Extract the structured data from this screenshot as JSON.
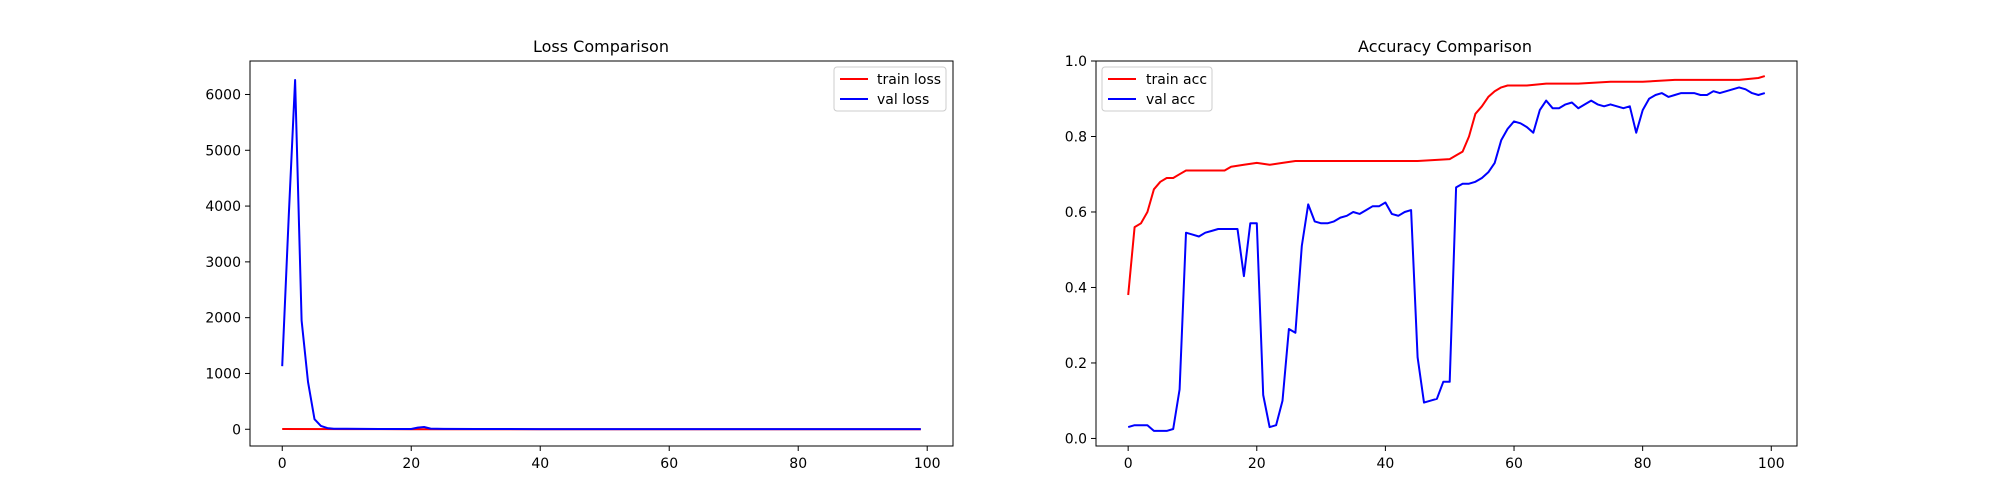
{
  "chart_data": [
    {
      "type": "line",
      "title": "Loss Comparison",
      "xlabel": "",
      "ylabel": "",
      "xlim": [
        -5,
        104
      ],
      "ylim": [
        -300,
        6600
      ],
      "xticks": [
        0,
        20,
        40,
        60,
        80,
        100
      ],
      "yticks": [
        0,
        1000,
        2000,
        3000,
        4000,
        5000,
        6000
      ],
      "grid": false,
      "legend": "top-right",
      "series": [
        {
          "name": "train loss",
          "color": "#ff0000",
          "x": [
            0,
            10,
            20,
            30,
            40,
            50,
            60,
            70,
            80,
            90,
            99
          ],
          "values": [
            5,
            2,
            1,
            1,
            1,
            1,
            1,
            1,
            1,
            1,
            1
          ]
        },
        {
          "name": "val loss",
          "color": "#0000ff",
          "x": [
            0,
            1,
            2,
            3,
            4,
            5,
            6,
            7,
            8,
            10,
            15,
            20,
            21,
            22,
            23,
            25,
            30,
            40,
            50,
            60,
            70,
            80,
            90,
            99
          ],
          "values": [
            1130,
            3800,
            6260,
            1950,
            850,
            180,
            60,
            20,
            10,
            8,
            5,
            5,
            30,
            40,
            12,
            6,
            4,
            3,
            3,
            3,
            3,
            3,
            3,
            3
          ]
        }
      ]
    },
    {
      "type": "line",
      "title": "Accuracy Comparison",
      "xlabel": "",
      "ylabel": "",
      "xlim": [
        -5,
        104
      ],
      "ylim": [
        -0.02,
        1.0
      ],
      "xticks": [
        0,
        20,
        40,
        60,
        80,
        100
      ],
      "yticks": [
        0.0,
        0.2,
        0.4,
        0.6,
        0.8,
        1.0
      ],
      "grid": false,
      "legend": "top-left",
      "series": [
        {
          "name": "train acc",
          "color": "#ff0000",
          "x": [
            0,
            1,
            2,
            3,
            4,
            5,
            6,
            7,
            8,
            9,
            10,
            12,
            14,
            15,
            16,
            18,
            20,
            22,
            24,
            26,
            30,
            35,
            40,
            45,
            50,
            51,
            52,
            53,
            54,
            55,
            56,
            57,
            58,
            59,
            60,
            62,
            65,
            70,
            75,
            80,
            85,
            90,
            95,
            98,
            99
          ],
          "values": [
            0.38,
            0.56,
            0.57,
            0.6,
            0.66,
            0.68,
            0.69,
            0.69,
            0.7,
            0.71,
            0.71,
            0.71,
            0.71,
            0.71,
            0.72,
            0.725,
            0.73,
            0.725,
            0.73,
            0.735,
            0.735,
            0.735,
            0.735,
            0.735,
            0.74,
            0.75,
            0.76,
            0.8,
            0.86,
            0.88,
            0.905,
            0.92,
            0.93,
            0.935,
            0.935,
            0.935,
            0.94,
            0.94,
            0.945,
            0.945,
            0.95,
            0.95,
            0.95,
            0.955,
            0.96
          ]
        },
        {
          "name": "val acc",
          "color": "#0000ff",
          "x": [
            0,
            1,
            2,
            3,
            4,
            5,
            6,
            7,
            8,
            9,
            10,
            11,
            12,
            13,
            14,
            15,
            16,
            17,
            18,
            19,
            20,
            21,
            22,
            23,
            24,
            25,
            26,
            27,
            28,
            29,
            30,
            31,
            32,
            33,
            34,
            35,
            36,
            37,
            38,
            39,
            40,
            41,
            42,
            43,
            44,
            45,
            46,
            47,
            48,
            49,
            50,
            51,
            52,
            53,
            54,
            55,
            56,
            57,
            58,
            59,
            60,
            61,
            62,
            63,
            64,
            65,
            66,
            67,
            68,
            69,
            70,
            71,
            72,
            73,
            74,
            75,
            76,
            77,
            78,
            79,
            80,
            81,
            82,
            83,
            84,
            85,
            86,
            87,
            88,
            89,
            90,
            91,
            92,
            93,
            94,
            95,
            96,
            97,
            98,
            99
          ],
          "values": [
            0.03,
            0.035,
            0.035,
            0.035,
            0.02,
            0.02,
            0.02,
            0.025,
            0.13,
            0.545,
            0.54,
            0.535,
            0.545,
            0.55,
            0.555,
            0.555,
            0.555,
            0.555,
            0.43,
            0.57,
            0.57,
            0.115,
            0.03,
            0.035,
            0.1,
            0.29,
            0.28,
            0.51,
            0.62,
            0.575,
            0.57,
            0.57,
            0.575,
            0.585,
            0.59,
            0.6,
            0.595,
            0.605,
            0.615,
            0.615,
            0.625,
            0.595,
            0.59,
            0.6,
            0.605,
            0.215,
            0.095,
            0.1,
            0.105,
            0.15,
            0.15,
            0.665,
            0.675,
            0.675,
            0.68,
            0.69,
            0.705,
            0.73,
            0.79,
            0.82,
            0.84,
            0.835,
            0.825,
            0.81,
            0.87,
            0.895,
            0.875,
            0.875,
            0.885,
            0.89,
            0.875,
            0.885,
            0.895,
            0.885,
            0.88,
            0.885,
            0.88,
            0.875,
            0.88,
            0.81,
            0.87,
            0.9,
            0.91,
            0.915,
            0.905,
            0.91,
            0.915,
            0.915,
            0.915,
            0.91,
            0.91,
            0.92,
            0.915,
            0.92,
            0.925,
            0.93,
            0.925,
            0.915,
            0.91,
            0.915
          ]
        }
      ]
    }
  ]
}
